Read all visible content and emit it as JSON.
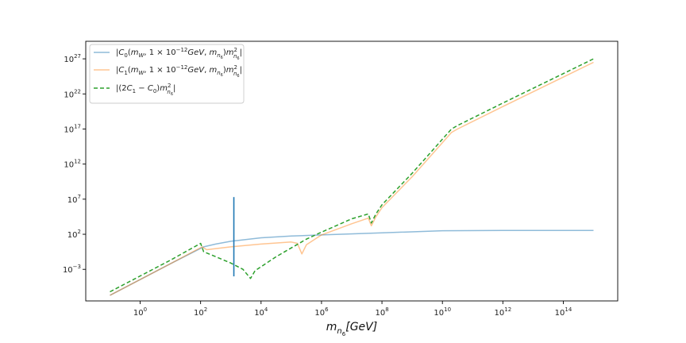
{
  "chart_data": {
    "type": "line",
    "title": "",
    "xscale": "log",
    "yscale": "log",
    "xlabel_html": "m<tspan font-style='italic'></tspan>",
    "xlabel": "m_{n6}[GeV]",
    "ylabel": "",
    "xlim_exp": [
      -1.8,
      15.8
    ],
    "ylim_exp": [
      -7.5,
      29.5
    ],
    "xticks": [
      {
        "exp": 0,
        "label": "10^0"
      },
      {
        "exp": 2,
        "label": "10^2"
      },
      {
        "exp": 4,
        "label": "10^4"
      },
      {
        "exp": 6,
        "label": "10^6"
      },
      {
        "exp": 8,
        "label": "10^8"
      },
      {
        "exp": 10,
        "label": "10^10"
      },
      {
        "exp": 12,
        "label": "10^12"
      },
      {
        "exp": 14,
        "label": "10^14"
      }
    ],
    "yticks": [
      {
        "exp": -3,
        "label": "10^-3"
      },
      {
        "exp": 2,
        "label": "10^2"
      },
      {
        "exp": 7,
        "label": "10^7"
      },
      {
        "exp": 12,
        "label": "10^12"
      },
      {
        "exp": 17,
        "label": "10^17"
      },
      {
        "exp": 22,
        "label": "10^22"
      },
      {
        "exp": 27,
        "label": "10^27"
      }
    ],
    "grid": false,
    "legend": "top-left",
    "series": [
      {
        "name": "|C_0(m_W, 1×10^-12 GeV, m_n6) m_n6^2|",
        "color": "#1f77b4",
        "dash": "solid",
        "opacity": 0.5,
        "points_logx_logy": [
          [
            -1,
            -6.7
          ],
          [
            1,
            -2.2
          ],
          [
            2.1,
            0.2
          ],
          [
            2.5,
            0.6
          ],
          [
            3,
            1.0
          ],
          [
            4,
            1.5
          ],
          [
            5,
            1.75
          ],
          [
            6,
            1.9
          ],
          [
            8,
            2.2
          ],
          [
            10,
            2.5
          ],
          [
            12,
            2.55
          ],
          [
            15,
            2.55
          ]
        ]
      },
      {
        "name": "|C_1(m_W, 1×10^-12 GeV, m_n6) m_n6^2|",
        "color": "#ff7f0e",
        "dash": "solid",
        "opacity": 0.45,
        "points_logx_logy": [
          [
            -1,
            -6.7
          ],
          [
            1,
            -2.2
          ],
          [
            2.05,
            0.2
          ],
          [
            2.2,
            -0.2
          ],
          [
            3,
            0.2
          ],
          [
            4,
            0.6
          ],
          [
            5,
            0.9
          ],
          [
            5.2,
            0.7
          ],
          [
            5.35,
            -0.8
          ],
          [
            5.5,
            0.5
          ],
          [
            6,
            1.9
          ],
          [
            7,
            3.5
          ],
          [
            7.55,
            4.3
          ],
          [
            7.65,
            3.2
          ],
          [
            7.8,
            4.5
          ],
          [
            8,
            5.8
          ],
          [
            9,
            10.2
          ],
          [
            10.3,
            16.5
          ],
          [
            10.5,
            17.0
          ],
          [
            12,
            20.2
          ],
          [
            14,
            24.4
          ],
          [
            15,
            26.5
          ]
        ]
      },
      {
        "name": "|(2C_1 − C_0) m_n6^2|",
        "color": "#2ca02c",
        "dash": "dashed",
        "opacity": 1,
        "points_logx_logy": [
          [
            -1,
            -6.2
          ],
          [
            1,
            -1.7
          ],
          [
            2.0,
            0.7
          ],
          [
            2.1,
            -0.5
          ],
          [
            2.5,
            -1.2
          ],
          [
            3,
            -2.1
          ],
          [
            3.4,
            -3.0
          ],
          [
            3.65,
            -4.3
          ],
          [
            3.8,
            -3.2
          ],
          [
            4.5,
            -1.2
          ],
          [
            5.5,
            1.3
          ],
          [
            6,
            2.3
          ],
          [
            7,
            4.2
          ],
          [
            7.55,
            4.9
          ],
          [
            7.65,
            3.6
          ],
          [
            7.8,
            4.9
          ],
          [
            8,
            6.2
          ],
          [
            9,
            10.7
          ],
          [
            10.3,
            17.0
          ],
          [
            10.5,
            17.5
          ],
          [
            12,
            20.7
          ],
          [
            14,
            24.9
          ],
          [
            15,
            27.0
          ]
        ]
      },
      {
        "name": "",
        "color": "#1f77b4",
        "dash": "solid",
        "opacity": 1,
        "vertical_spike": {
          "x": 3.1,
          "y_from": -4.0,
          "y_to": 7.3
        }
      }
    ]
  }
}
